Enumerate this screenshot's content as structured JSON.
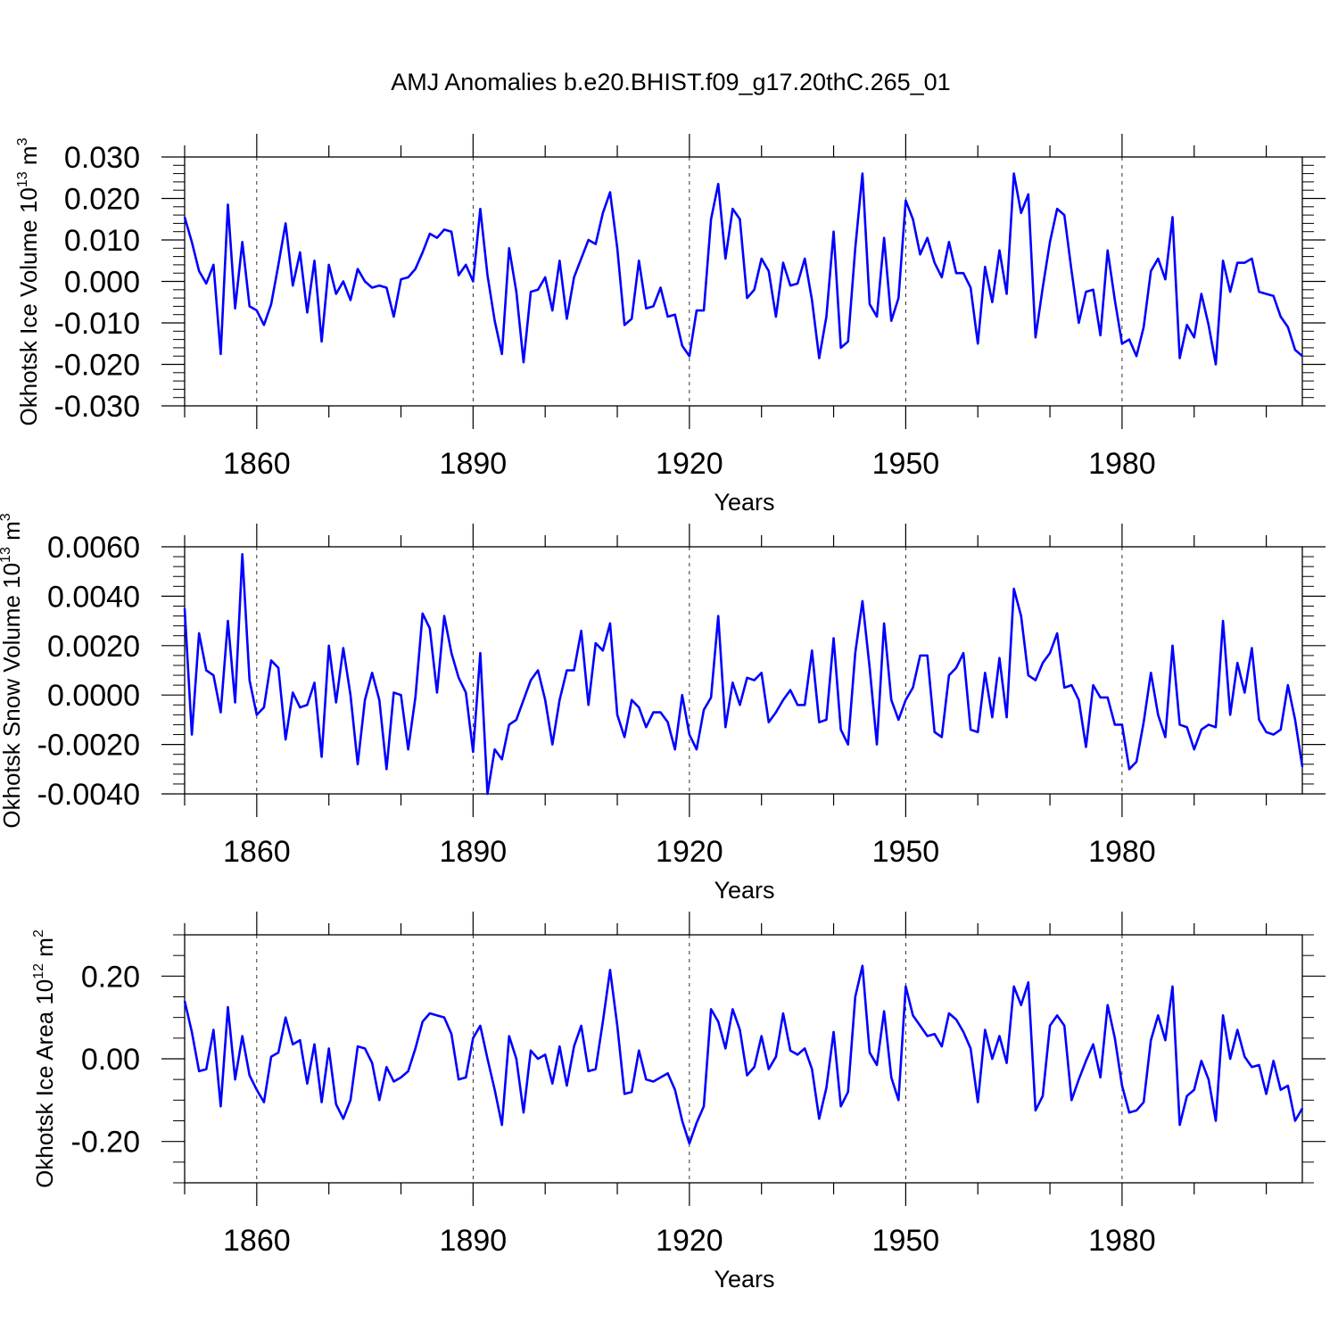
{
  "title": "AMJ Anomalies b.e20.BHIST.f09_g17.20thC.265_01",
  "chart_data": [
    {
      "type": "line",
      "name": "ice-volume",
      "ylabel": {
        "main": "Okhotsk Ice Volume 10",
        "exp": "13",
        "unit": " m",
        "unitexp": "3"
      },
      "xlabel": "Years",
      "xlim": [
        1850,
        2005
      ],
      "ylim": [
        -0.03,
        0.03
      ],
      "yticks": [
        -0.03,
        -0.02,
        -0.01,
        0.0,
        0.01,
        0.02,
        0.03
      ],
      "ytick_labels": [
        "-0.030",
        "-0.020",
        "-0.010",
        "0.000",
        "0.010",
        "0.020",
        "0.030"
      ],
      "xticks": [
        1860,
        1890,
        1920,
        1950,
        1980
      ],
      "xtick_labels": [
        "1860",
        "1890",
        "1920",
        "1950",
        "1980"
      ],
      "color": "#0000ff",
      "x_start": 1850,
      "values": [
        0.0155,
        0.0095,
        0.0025,
        -0.0005,
        0.004,
        -0.0175,
        0.0185,
        -0.0065,
        0.0095,
        -0.006,
        -0.007,
        -0.0105,
        -0.0055,
        0.004,
        0.014,
        -0.001,
        0.007,
        -0.0075,
        0.005,
        -0.0145,
        0.004,
        -0.003,
        0.0,
        -0.0045,
        0.003,
        0.0,
        -0.0015,
        -0.001,
        -0.0015,
        -0.0085,
        0.0005,
        0.001,
        0.003,
        0.007,
        0.0115,
        0.0105,
        0.0125,
        0.012,
        0.0015,
        0.004,
        0.0,
        0.0175,
        0.0015,
        -0.0095,
        -0.0175,
        0.008,
        -0.0025,
        -0.0195,
        -0.0025,
        -0.002,
        0.001,
        -0.007,
        0.005,
        -0.009,
        0.001,
        0.0055,
        0.01,
        0.009,
        0.0165,
        0.0215,
        0.008,
        -0.0105,
        -0.009,
        0.005,
        -0.0065,
        -0.006,
        -0.0015,
        -0.0085,
        -0.008,
        -0.0155,
        -0.018,
        -0.007,
        -0.007,
        0.015,
        0.0235,
        0.0055,
        0.0175,
        0.015,
        -0.004,
        -0.002,
        0.0055,
        0.0025,
        -0.0085,
        0.0045,
        -0.001,
        -0.0005,
        0.0055,
        -0.0045,
        -0.0185,
        -0.0085,
        0.012,
        -0.016,
        -0.0145,
        0.008,
        0.026,
        -0.0055,
        -0.0085,
        0.0105,
        -0.0095,
        -0.004,
        0.0195,
        0.015,
        0.0065,
        0.0105,
        0.0045,
        0.001,
        0.0095,
        0.002,
        0.002,
        -0.0015,
        -0.015,
        0.0035,
        -0.005,
        0.0075,
        -0.003,
        0.026,
        0.0165,
        0.021,
        -0.0135,
        -0.0015,
        0.0095,
        0.0175,
        0.016,
        0.0025,
        -0.01,
        -0.0025,
        -0.002,
        -0.013,
        0.0075,
        -0.0045,
        -0.015,
        -0.014,
        -0.018,
        -0.011,
        0.0025,
        0.0055,
        0.0005,
        0.0155,
        -0.0185,
        -0.0105,
        -0.0135,
        -0.003,
        -0.0105,
        -0.02,
        0.005,
        -0.0025,
        0.0045,
        0.0045,
        0.0055,
        -0.0025,
        -0.003,
        -0.0035,
        -0.0085,
        -0.011,
        -0.0165,
        -0.018
      ]
    },
    {
      "type": "line",
      "name": "snow-volume",
      "ylabel": {
        "main": "Okhotsk Snow Volume 10",
        "exp": "13",
        "unit": " m",
        "unitexp": "3"
      },
      "xlabel": "Years",
      "xlim": [
        1850,
        2005
      ],
      "ylim": [
        -0.004,
        0.006
      ],
      "yticks": [
        -0.004,
        -0.002,
        0.0,
        0.002,
        0.004,
        0.006
      ],
      "ytick_labels": [
        "-0.0040",
        "-0.0020",
        "0.0000",
        "0.0020",
        "0.0040",
        "0.0060"
      ],
      "xticks": [
        1860,
        1890,
        1920,
        1950,
        1980
      ],
      "xtick_labels": [
        "1860",
        "1890",
        "1920",
        "1950",
        "1980"
      ],
      "color": "#0000ff",
      "x_start": 1850,
      "values": [
        0.0035,
        -0.0016,
        0.0025,
        0.001,
        0.0008,
        -0.0007,
        0.003,
        -0.0003,
        0.0057,
        0.0006,
        -0.0008,
        -0.0005,
        0.0014,
        0.0011,
        -0.0018,
        0.0001,
        -0.0005,
        -0.0004,
        0.0005,
        -0.0025,
        0.002,
        -0.0003,
        0.0019,
        0.0,
        -0.0028,
        -0.0002,
        0.0009,
        -0.0002,
        -0.003,
        0.0001,
        0.0,
        -0.0022,
        -0.0001,
        0.0033,
        0.0027,
        0.0001,
        0.0032,
        0.0017,
        0.0007,
        0.0001,
        -0.0023,
        0.0017,
        -0.004,
        -0.0022,
        -0.0026,
        -0.0012,
        -0.001,
        -0.0002,
        0.0006,
        0.001,
        -0.0002,
        -0.002,
        -0.0002,
        0.001,
        0.001,
        0.0026,
        -0.0004,
        0.0021,
        0.0018,
        0.0029,
        -0.0008,
        -0.0017,
        -0.0002,
        -0.0005,
        -0.0013,
        -0.0007,
        -0.0007,
        -0.0011,
        -0.0022,
        0.0,
        -0.0016,
        -0.0022,
        -0.0006,
        -0.0001,
        0.0032,
        -0.0013,
        0.0005,
        -0.0004,
        0.0007,
        0.0006,
        0.0009,
        -0.0011,
        -0.0007,
        -0.0002,
        0.0002,
        -0.0004,
        -0.0004,
        0.0018,
        -0.0011,
        -0.001,
        0.0023,
        -0.0014,
        -0.002,
        0.0017,
        0.0038,
        0.0011,
        -0.002,
        0.0029,
        -0.0002,
        -0.001,
        -0.0002,
        0.0003,
        0.0016,
        0.0016,
        -0.0015,
        -0.0017,
        0.0008,
        0.0011,
        0.0017,
        -0.0014,
        -0.0015,
        0.0009,
        -0.0009,
        0.0015,
        -0.0009,
        0.0043,
        0.0032,
        0.0008,
        0.0006,
        0.0013,
        0.0017,
        0.0025,
        0.0003,
        0.0004,
        -0.0002,
        -0.0021,
        0.0004,
        -0.0001,
        -0.0001,
        -0.0012,
        -0.0012,
        -0.003,
        -0.0027,
        -0.0011,
        0.0009,
        -0.0008,
        -0.0017,
        0.002,
        -0.0012,
        -0.0013,
        -0.0022,
        -0.0014,
        -0.0012,
        -0.0013,
        0.003,
        -0.0008,
        0.0013,
        0.0001,
        0.0019,
        -0.001,
        -0.0015,
        -0.0016,
        -0.0014,
        0.0004,
        -0.001,
        -0.0029
      ]
    },
    {
      "type": "line",
      "name": "ice-area",
      "ylabel": {
        "main": "Okhotsk Ice Area 10",
        "exp": "12",
        "unit": " m",
        "unitexp": "2"
      },
      "xlabel": "Years",
      "xlim": [
        1850,
        2005
      ],
      "ylim": [
        -0.3,
        0.3
      ],
      "yticks": [
        -0.2,
        0.0,
        0.2
      ],
      "ytick_labels": [
        "-0.20",
        "0.00",
        "0.20"
      ],
      "minor_yticks": [
        -0.3,
        -0.25,
        -0.15,
        -0.1,
        -0.05,
        0.05,
        0.1,
        0.15,
        0.25,
        0.3
      ],
      "xticks": [
        1860,
        1890,
        1920,
        1950,
        1980
      ],
      "xtick_labels": [
        "1860",
        "1890",
        "1920",
        "1950",
        "1980"
      ],
      "color": "#0000ff",
      "x_start": 1850,
      "values": [
        0.14,
        0.065,
        -0.03,
        -0.025,
        0.07,
        -0.115,
        0.125,
        -0.05,
        0.055,
        -0.04,
        -0.075,
        -0.105,
        0.005,
        0.015,
        0.1,
        0.035,
        0.045,
        -0.06,
        0.035,
        -0.105,
        0.025,
        -0.11,
        -0.145,
        -0.1,
        0.03,
        0.025,
        -0.01,
        -0.1,
        -0.02,
        -0.055,
        -0.045,
        -0.03,
        0.025,
        0.09,
        0.11,
        0.105,
        0.1,
        0.06,
        -0.05,
        -0.045,
        0.05,
        0.08,
        0.0,
        -0.075,
        -0.16,
        0.055,
        0.0,
        -0.13,
        0.02,
        0.0,
        0.01,
        -0.06,
        0.03,
        -0.065,
        0.03,
        0.08,
        -0.03,
        -0.025,
        0.09,
        0.215,
        0.08,
        -0.085,
        -0.08,
        0.02,
        -0.05,
        -0.055,
        -0.045,
        -0.035,
        -0.075,
        -0.15,
        -0.205,
        -0.155,
        -0.115,
        0.12,
        0.09,
        0.025,
        0.12,
        0.07,
        -0.04,
        -0.02,
        0.055,
        -0.025,
        0.005,
        0.11,
        0.02,
        0.01,
        0.025,
        -0.025,
        -0.145,
        -0.07,
        0.065,
        -0.115,
        -0.08,
        0.15,
        0.225,
        0.015,
        -0.015,
        0.115,
        -0.045,
        -0.1,
        0.175,
        0.105,
        0.08,
        0.055,
        0.06,
        0.03,
        0.11,
        0.095,
        0.065,
        0.025,
        -0.105,
        0.07,
        0.0,
        0.055,
        -0.01,
        0.175,
        0.13,
        0.185,
        -0.125,
        -0.09,
        0.08,
        0.105,
        0.08,
        -0.1,
        -0.05,
        -0.005,
        0.035,
        -0.045,
        0.13,
        0.05,
        -0.065,
        -0.13,
        -0.125,
        -0.105,
        0.045,
        0.105,
        0.045,
        0.175,
        -0.16,
        -0.09,
        -0.075,
        -0.005,
        -0.05,
        -0.15,
        0.105,
        0.0,
        0.07,
        0.005,
        -0.02,
        -0.015,
        -0.085,
        -0.005,
        -0.075,
        -0.065,
        -0.15,
        -0.12
      ]
    }
  ]
}
